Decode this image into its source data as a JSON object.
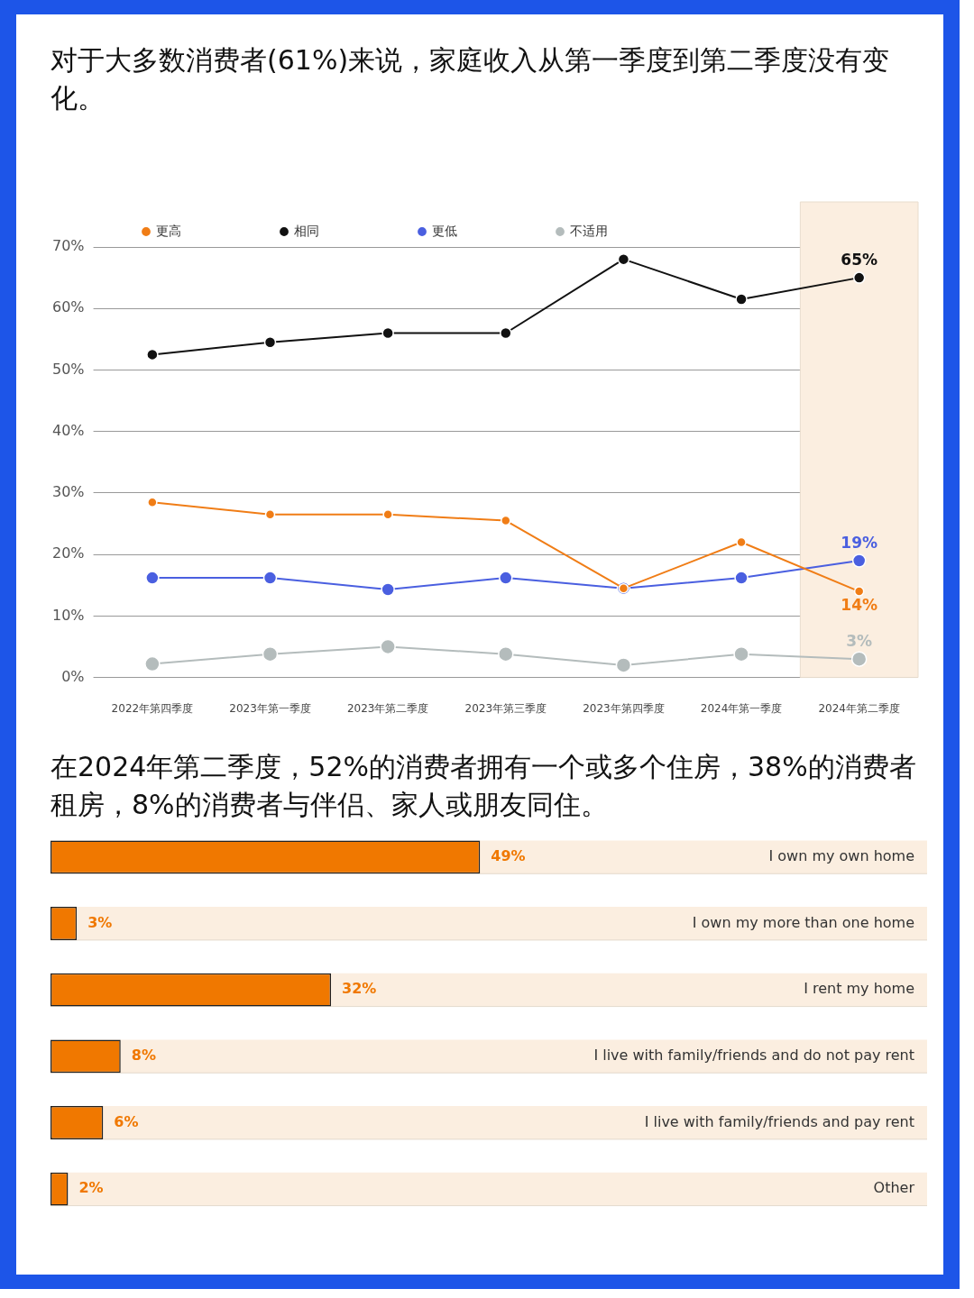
{
  "chart_data": [
    {
      "type": "line",
      "title": "对于大多数消费者(61%)来说，家庭收入从第一季度到第二季度没有变化。",
      "categories": [
        "2022年第四季度",
        "2023年第一季度",
        "2023年第二季度",
        "2023年第三季度",
        "2023年第四季度",
        "2024年第一季度",
        "2024年第二季度"
      ],
      "series": [
        {
          "name": "更高",
          "color": "#f07d16",
          "values": [
            28.5,
            26.5,
            26.5,
            25.5,
            14.5,
            22,
            14
          ],
          "value_labels": [
            null,
            null,
            null,
            null,
            null,
            null,
            "14%"
          ]
        },
        {
          "name": "相同",
          "color": "#111111",
          "values": [
            52.5,
            54.5,
            56,
            56,
            68,
            61.5,
            65
          ],
          "value_labels": [
            null,
            null,
            null,
            null,
            null,
            null,
            "65%"
          ]
        },
        {
          "name": "更低",
          "color": "#4a5fe0",
          "values": [
            16.2,
            16.2,
            14.3,
            16.2,
            14.5,
            16.2,
            19
          ],
          "value_labels": [
            null,
            null,
            null,
            null,
            null,
            null,
            "19%"
          ]
        },
        {
          "name": "不适用",
          "color": "#b4bcbc",
          "values": [
            2.2,
            3.8,
            5,
            3.8,
            2,
            3.8,
            3
          ],
          "value_labels": [
            null,
            null,
            null,
            null,
            null,
            null,
            "3%"
          ]
        }
      ],
      "ylim": [
        0,
        70
      ],
      "yticks": [
        {
          "value": 0,
          "label": "0%"
        },
        {
          "value": 10,
          "label": "10%"
        },
        {
          "value": 20,
          "label": "20%"
        },
        {
          "value": 30,
          "label": "30%"
        },
        {
          "value": 40,
          "label": "40%"
        },
        {
          "value": 50,
          "label": "50%"
        },
        {
          "value": 60,
          "label": "60%"
        },
        {
          "value": 70,
          "label": "70%"
        }
      ],
      "bands": [
        {
          "axis": "x",
          "from": "2024年第二季度",
          "to": "2024年第二季度",
          "color": "#fbeee0"
        }
      ],
      "grid": "y",
      "legend": "top",
      "marker": "circle",
      "line_style": "solid"
    },
    {
      "type": "bar",
      "orientation": "horizontal",
      "title": "在2024年第二季度，52%的消费者拥有一个或多个住房，38%的消费者租房，8%的消费者与伴侣、家人或朋友同住。",
      "categories": [
        "I own my own home",
        "I own my more than one home",
        "I rent my home",
        "I live with family/friends and do not pay rent",
        "I live with family/friends and pay rent",
        "Other"
      ],
      "values": [
        49,
        3,
        32,
        8,
        6,
        2
      ],
      "color": "#f07800",
      "value_labels": [
        "49%",
        "3%",
        "32%",
        "8%",
        "6%",
        "2%"
      ],
      "xlim": [
        0,
        100
      ],
      "grid": false,
      "legend": false
    }
  ]
}
